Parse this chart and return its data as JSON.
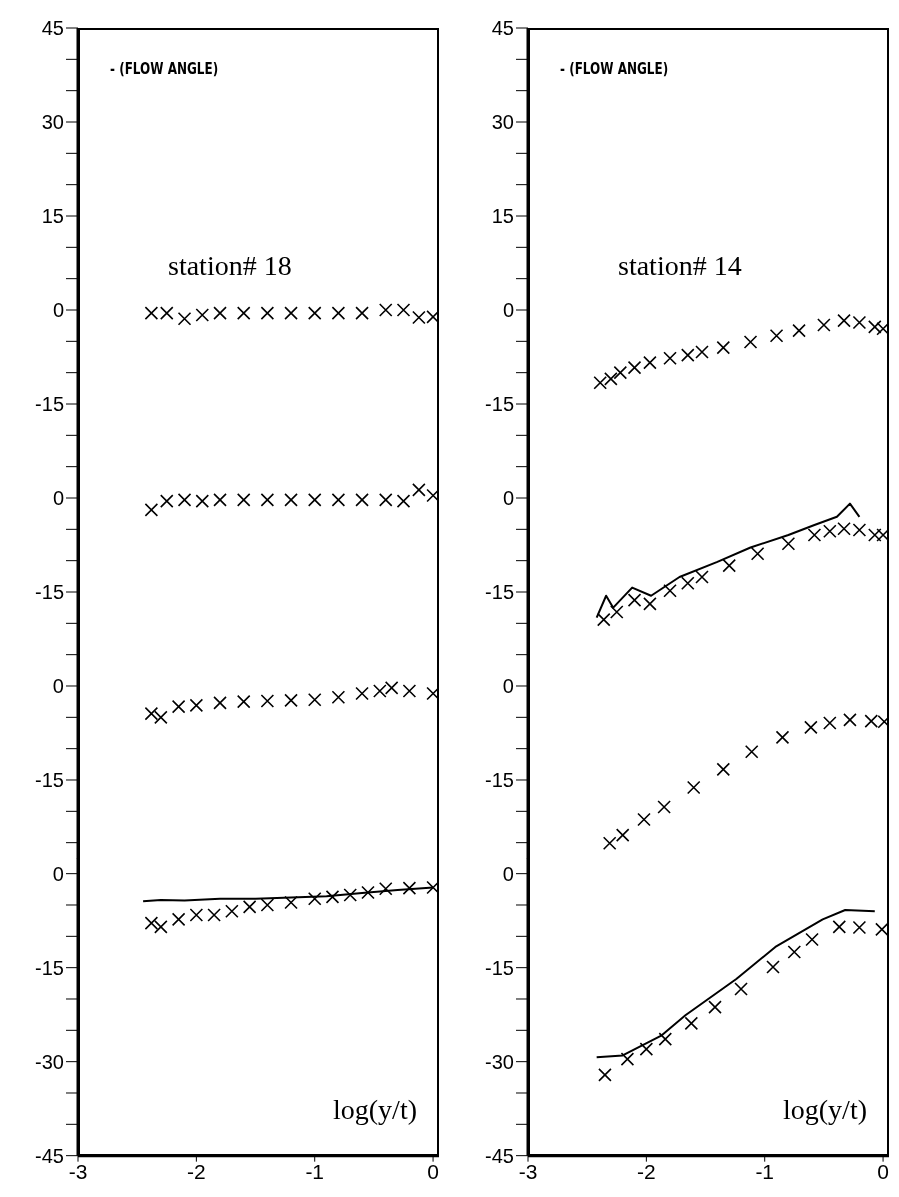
{
  "chart_data": [
    {
      "type": "scatter",
      "title": "station# 18",
      "ylabel": "- (FLOW ANGLE)",
      "marker": "cross",
      "tick_labels": "y",
      "xlim": [
        -3,
        0.05
      ],
      "ylim": [
        -22.5,
        45
      ],
      "yticks": [
        45,
        30,
        15,
        0,
        -15
      ],
      "series": [
        {
          "color": "#000000",
          "x": [
            -2.38,
            -2.25,
            -2.1,
            -1.95,
            -1.8,
            -1.6,
            -1.4,
            -1.2,
            -1.0,
            -0.8,
            -0.6,
            -0.4,
            -0.25,
            -0.12,
            0.0
          ],
          "values": [
            -0.5,
            -0.5,
            -1.4,
            -0.8,
            -0.5,
            -0.5,
            -0.5,
            -0.5,
            -0.5,
            -0.5,
            -0.5,
            0,
            0,
            -1.2,
            -1.1
          ]
        }
      ]
    },
    {
      "type": "scatter",
      "marker": "cross",
      "tick_labels": "y",
      "xlim": [
        -3,
        0.05
      ],
      "ylim": [
        -22.5,
        7.5
      ],
      "yticks": [
        0,
        -15
      ],
      "series": [
        {
          "color": "#000000",
          "x": [
            -2.38,
            -2.25,
            -2.1,
            -1.95,
            -1.8,
            -1.6,
            -1.4,
            -1.2,
            -1.0,
            -0.8,
            -0.6,
            -0.4,
            -0.25,
            -0.12,
            0.0
          ],
          "values": [
            -1.9,
            -0.5,
            -0.3,
            -0.5,
            -0.3,
            -0.3,
            -0.3,
            -0.3,
            -0.3,
            -0.3,
            -0.3,
            -0.3,
            -0.5,
            1.3,
            0.4
          ]
        }
      ]
    },
    {
      "type": "scatter",
      "marker": "cross",
      "tick_labels": "y",
      "xlim": [
        -3,
        0.05
      ],
      "ylim": [
        -27.5,
        7.5
      ],
      "yticks": [
        0,
        -15
      ],
      "series": [
        {
          "color": "#000000",
          "x": [
            -2.38,
            -2.3,
            -2.15,
            -2.0,
            -1.8,
            -1.6,
            -1.4,
            -1.2,
            -1.0,
            -0.8,
            -0.6,
            -0.45,
            -0.35,
            -0.2,
            0.0
          ],
          "values": [
            -4.4,
            -5,
            -3.3,
            -3.1,
            -2.7,
            -2.5,
            -2.4,
            -2.3,
            -2.2,
            -1.8,
            -1.2,
            -0.8,
            -0.3,
            -0.8,
            -1.2
          ]
        }
      ]
    },
    {
      "type": "scatter",
      "xlabel": "log(y/t)",
      "marker": "cross",
      "xlim": [
        -3,
        0.05
      ],
      "xticks": [
        -3,
        -2,
        -1,
        0
      ],
      "ylim": [
        -45,
        2.5
      ],
      "yticks": [
        0,
        -15,
        -30,
        -45
      ],
      "series": [
        {
          "color": "#000000",
          "x": [
            -2.38,
            -2.3,
            -2.15,
            -2.0,
            -1.85,
            -1.7,
            -1.55,
            -1.4,
            -1.2,
            -1.0,
            -0.85,
            -0.7,
            -0.55,
            -0.4,
            -0.2,
            0.0
          ],
          "values": [
            -7.9,
            -8.5,
            -7.3,
            -6.6,
            -6.6,
            -6,
            -5.3,
            -5,
            -4.6,
            -4,
            -3.7,
            -3.4,
            -3,
            -2.4,
            -2.3,
            -2.2
          ]
        },
        {
          "type": "line",
          "marker": "none",
          "color": "#000000",
          "x": [
            -2.45,
            -2.3,
            -2.1,
            -1.8,
            -1.5,
            -1.2,
            -0.9,
            -0.6,
            -0.3,
            0.0
          ],
          "values": [
            -4.4,
            -4.2,
            -4.3,
            -4,
            -4,
            -3.8,
            -3.6,
            -3.1,
            -2.6,
            -2.2
          ]
        }
      ]
    },
    {
      "type": "scatter",
      "title": "station# 14",
      "ylabel": "- (FLOW ANGLE)",
      "marker": "cross",
      "tick_labels": "y",
      "xlim": [
        -3,
        0.05
      ],
      "ylim": [
        -22.5,
        45
      ],
      "yticks": [
        45,
        30,
        15,
        0,
        -15
      ],
      "series": [
        {
          "color": "#000000",
          "x": [
            -2.39,
            -2.3,
            -2.22,
            -2.1,
            -1.97,
            -1.8,
            -1.65,
            -1.53,
            -1.35,
            -1.12,
            -0.9,
            -0.71,
            -0.5,
            -0.33,
            -0.2,
            -0.07,
            0.0
          ],
          "values": [
            -11.6,
            -11,
            -10,
            -9.2,
            -8.4,
            -7.7,
            -7.2,
            -6.7,
            -6,
            -5.1,
            -4.1,
            -3.3,
            -2.4,
            -1.7,
            -2,
            -2.7,
            -3
          ]
        }
      ]
    },
    {
      "type": "scatter",
      "marker": "cross",
      "tick_labels": "y",
      "xlim": [
        -3,
        0.05
      ],
      "ylim": [
        -22.5,
        7.5
      ],
      "yticks": [
        0,
        -15
      ],
      "series": [
        {
          "color": "#000000",
          "x": [
            -2.36,
            -2.25,
            -2.1,
            -1.97,
            -1.8,
            -1.65,
            -1.53,
            -1.3,
            -1.06,
            -0.8,
            -0.58,
            -0.45,
            -0.33,
            -0.2,
            -0.07,
            0.0
          ],
          "values": [
            -19.4,
            -18.2,
            -16.3,
            -16.9,
            -14.8,
            -13.6,
            -12.6,
            -10.8,
            -8.9,
            -7.3,
            -5.9,
            -5.3,
            -4.9,
            -5.1,
            -5.9,
            -5.9
          ]
        },
        {
          "type": "line",
          "marker": "none",
          "color": "#000000",
          "x": [
            -2.42,
            -2.34,
            -2.28,
            -2.12,
            -1.96,
            -1.72,
            -1.4,
            -1.12,
            -0.8,
            -0.58,
            -0.39,
            -0.28,
            -0.2
          ],
          "values": [
            -19.1,
            -15.6,
            -17.5,
            -14.3,
            -15.6,
            -12.6,
            -10.2,
            -7.9,
            -5.9,
            -4.3,
            -3,
            -0.9,
            -3
          ]
        }
      ]
    },
    {
      "type": "scatter",
      "marker": "cross",
      "tick_labels": "y",
      "xlim": [
        -3,
        0.05
      ],
      "ylim": [
        -27.5,
        7.5
      ],
      "yticks": [
        0,
        -15
      ],
      "series": [
        {
          "color": "#000000",
          "x": [
            -2.31,
            -2.2,
            -2.02,
            -1.85,
            -1.6,
            -1.35,
            -1.11,
            -0.85,
            -0.61,
            -0.45,
            -0.28,
            -0.1,
            0.01
          ],
          "values": [
            -25.1,
            -23.8,
            -21.3,
            -19.3,
            -16.2,
            -13.3,
            -10.5,
            -8.2,
            -6.6,
            -5.9,
            -5.4,
            -5.6,
            -5.7
          ]
        }
      ]
    },
    {
      "type": "scatter",
      "xlabel": "log(y/t)",
      "marker": "cross",
      "xlim": [
        -3,
        0.05
      ],
      "xticks": [
        -3,
        -2,
        -1,
        0
      ],
      "ylim": [
        -45,
        2.5
      ],
      "yticks": [
        0,
        -15,
        -30,
        -45
      ],
      "series": [
        {
          "color": "#000000",
          "x": [
            -2.35,
            -2.16,
            -2.0,
            -1.84,
            -1.62,
            -1.42,
            -1.2,
            -0.93,
            -0.75,
            -0.6,
            -0.37,
            -0.2,
            -0.01
          ],
          "values": [
            -32.1,
            -29.6,
            -28,
            -26.4,
            -23.9,
            -21.3,
            -18.4,
            -14.9,
            -12.5,
            -10.5,
            -8.5,
            -8.6,
            -8.9
          ]
        },
        {
          "type": "line",
          "marker": "none",
          "color": "#000000",
          "x": [
            -2.42,
            -2.2,
            -1.87,
            -1.67,
            -1.24,
            -0.91,
            -0.51,
            -0.32,
            -0.07
          ],
          "values": [
            -29.3,
            -29,
            -25.8,
            -22.6,
            -16.8,
            -11.7,
            -7.3,
            -5.8,
            -6
          ]
        }
      ]
    }
  ]
}
